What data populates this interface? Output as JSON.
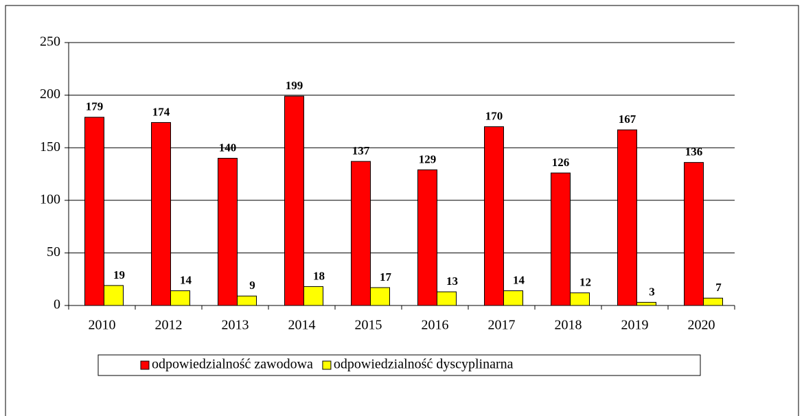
{
  "chart_data": {
    "type": "bar",
    "categories": [
      "2010",
      "2012",
      "2013",
      "2014",
      "2015",
      "2016",
      "2017",
      "2018",
      "2019",
      "2020"
    ],
    "series": [
      {
        "name": "odpowiedzialność zawodowa",
        "color": "#ff0000",
        "values": [
          179,
          174,
          140,
          199,
          137,
          129,
          170,
          126,
          167,
          136
        ]
      },
      {
        "name": "odpowiedzialność dyscyplinarna",
        "color": "#ffff00",
        "values": [
          19,
          14,
          9,
          18,
          17,
          13,
          14,
          12,
          3,
          7
        ]
      }
    ],
    "ylim": [
      0,
      250
    ],
    "yticks": [
      0,
      50,
      100,
      150,
      200,
      250
    ],
    "grid": true,
    "legend": "bottom"
  }
}
